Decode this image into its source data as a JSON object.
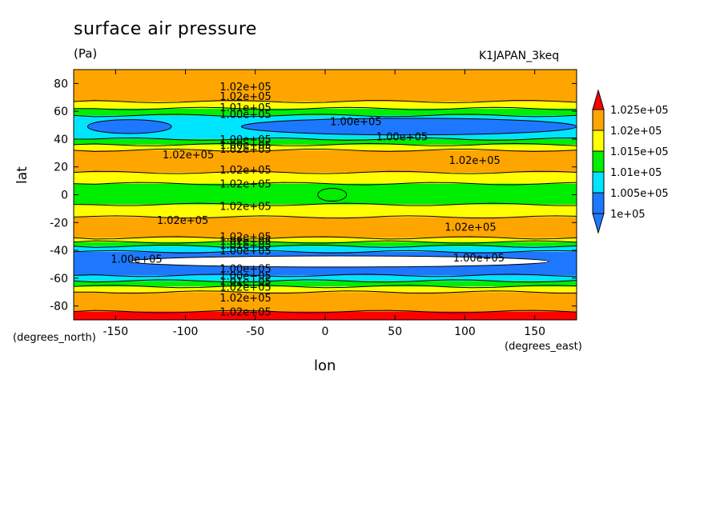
{
  "chart_data": {
    "type": "heatmap",
    "title": "surface air pressure",
    "units": "(Pa)",
    "dataset": "K1JAPAN_3keq",
    "xlabel": "lon",
    "ylabel": "lat",
    "x_units": "(degrees_east)",
    "y_units": "(degrees_north)",
    "xlim": [
      -180,
      180
    ],
    "ylim": [
      -90,
      90
    ],
    "x_ticks": [
      -150,
      -100,
      -50,
      0,
      50,
      100,
      150
    ],
    "y_ticks": [
      -80,
      -60,
      -40,
      -20,
      0,
      20,
      40,
      60,
      80
    ],
    "x_tick_labels": [
      "-150",
      "-100",
      "-50",
      "0",
      "50",
      "100",
      "150"
    ],
    "y_tick_labels": [
      "-80",
      "-60",
      "-40",
      "-20",
      "0",
      "20",
      "40",
      "60",
      "80"
    ],
    "colorbar": {
      "levels": [
        100000,
        100500,
        101000,
        101500,
        102000,
        102500
      ],
      "labels": [
        "1e+05",
        "1.005e+05",
        "1.01e+05",
        "1.015e+05",
        "1.02e+05",
        "1.025e+05"
      ],
      "colors": [
        "#ffffff",
        "#1e78ff",
        "#00e5ff",
        "#00ee00",
        "#ffff00",
        "#ffa500",
        "#ff0000"
      ],
      "extend": "both"
    },
    "bands": [
      {
        "lat": [
          -90,
          -84
        ],
        "value": 102600
      },
      {
        "lat": [
          -84,
          -70
        ],
        "value": 102200
      },
      {
        "lat": [
          -70,
          -66
        ],
        "value": 101700
      },
      {
        "lat": [
          -66,
          -62
        ],
        "value": 101200
      },
      {
        "lat": [
          -62,
          -58
        ],
        "value": 100700
      },
      {
        "lat": [
          -58,
          -41
        ],
        "value": 100200
      },
      {
        "lat": [
          -41,
          -37
        ],
        "value": 100700
      },
      {
        "lat": [
          -37,
          -34
        ],
        "value": 101200
      },
      {
        "lat": [
          -34,
          -31
        ],
        "value": 101700
      },
      {
        "lat": [
          -31,
          -16
        ],
        "value": 102200
      },
      {
        "lat": [
          -16,
          -7
        ],
        "value": 101700
      },
      {
        "lat": [
          -7,
          8
        ],
        "value": 101200
      },
      {
        "lat": [
          8,
          16
        ],
        "value": 101700
      },
      {
        "lat": [
          16,
          32
        ],
        "value": 102200
      },
      {
        "lat": [
          32,
          36
        ],
        "value": 101700
      },
      {
        "lat": [
          36,
          40
        ],
        "value": 101200
      },
      {
        "lat": [
          40,
          57
        ],
        "value": 100700
      },
      {
        "lat": [
          57,
          62
        ],
        "value": 101200
      },
      {
        "lat": [
          62,
          67
        ],
        "value": 101700
      },
      {
        "lat": [
          67,
          90
        ],
        "value": 102200
      }
    ],
    "low_cells": [
      {
        "lon": [
          -170,
          -110
        ],
        "lat": [
          44,
          54
        ],
        "value": 100200
      },
      {
        "lon": [
          -60,
          180
        ],
        "lat": [
          43,
          55
        ],
        "value": 100200
      },
      {
        "lon": [
          -140,
          160
        ],
        "lat": [
          -52,
          -44
        ],
        "value": 99700
      }
    ],
    "contour_labels": [
      {
        "text": "1.02e+05",
        "lon": -57,
        "lat": 78
      },
      {
        "text": "1.02e+05",
        "lon": -57,
        "lat": 71
      },
      {
        "text": "1.01e+05",
        "lon": -57,
        "lat": 63
      },
      {
        "text": "1.00e+05",
        "lon": -57,
        "lat": 58
      },
      {
        "text": "1.00e+05",
        "lon": 22,
        "lat": 53
      },
      {
        "text": "1.00e+05",
        "lon": 55,
        "lat": 42
      },
      {
        "text": "1.00e+05",
        "lon": -57,
        "lat": 40
      },
      {
        "text": "1.00e+05",
        "lon": -57,
        "lat": 36
      },
      {
        "text": "1.02e+05",
        "lon": -57,
        "lat": 33
      },
      {
        "text": "1.02e+05",
        "lon": -98,
        "lat": 29
      },
      {
        "text": "1.02e+05",
        "lon": 107,
        "lat": 25
      },
      {
        "text": "1.02e+05",
        "lon": -57,
        "lat": 18
      },
      {
        "text": "1.02e+05",
        "lon": -57,
        "lat": 8
      },
      {
        "text": "1.02e+05",
        "lon": -57,
        "lat": -8
      },
      {
        "text": "1.02e+05",
        "lon": -102,
        "lat": -18
      },
      {
        "text": "1.02e+05",
        "lon": 104,
        "lat": -23
      },
      {
        "text": "1.02e+05",
        "lon": -57,
        "lat": -30
      },
      {
        "text": "1.02e+05",
        "lon": -57,
        "lat": -33
      },
      {
        "text": "1.01e+05",
        "lon": -57,
        "lat": -36
      },
      {
        "text": "1.00e+05",
        "lon": -57,
        "lat": -40
      },
      {
        "text": "1.00e+05",
        "lon": -135,
        "lat": -46
      },
      {
        "text": "1.00e+05",
        "lon": 110,
        "lat": -45
      },
      {
        "text": "1.00e+05",
        "lon": -57,
        "lat": -53
      },
      {
        "text": "1.00e+05",
        "lon": -57,
        "lat": -58
      },
      {
        "text": "1.01e+05",
        "lon": -57,
        "lat": -62
      },
      {
        "text": "1.02e+05",
        "lon": -57,
        "lat": -66
      },
      {
        "text": "1.02e+05",
        "lon": -57,
        "lat": -74
      },
      {
        "text": "1.02e+05",
        "lon": -57,
        "lat": -84
      }
    ],
    "grid": false
  }
}
